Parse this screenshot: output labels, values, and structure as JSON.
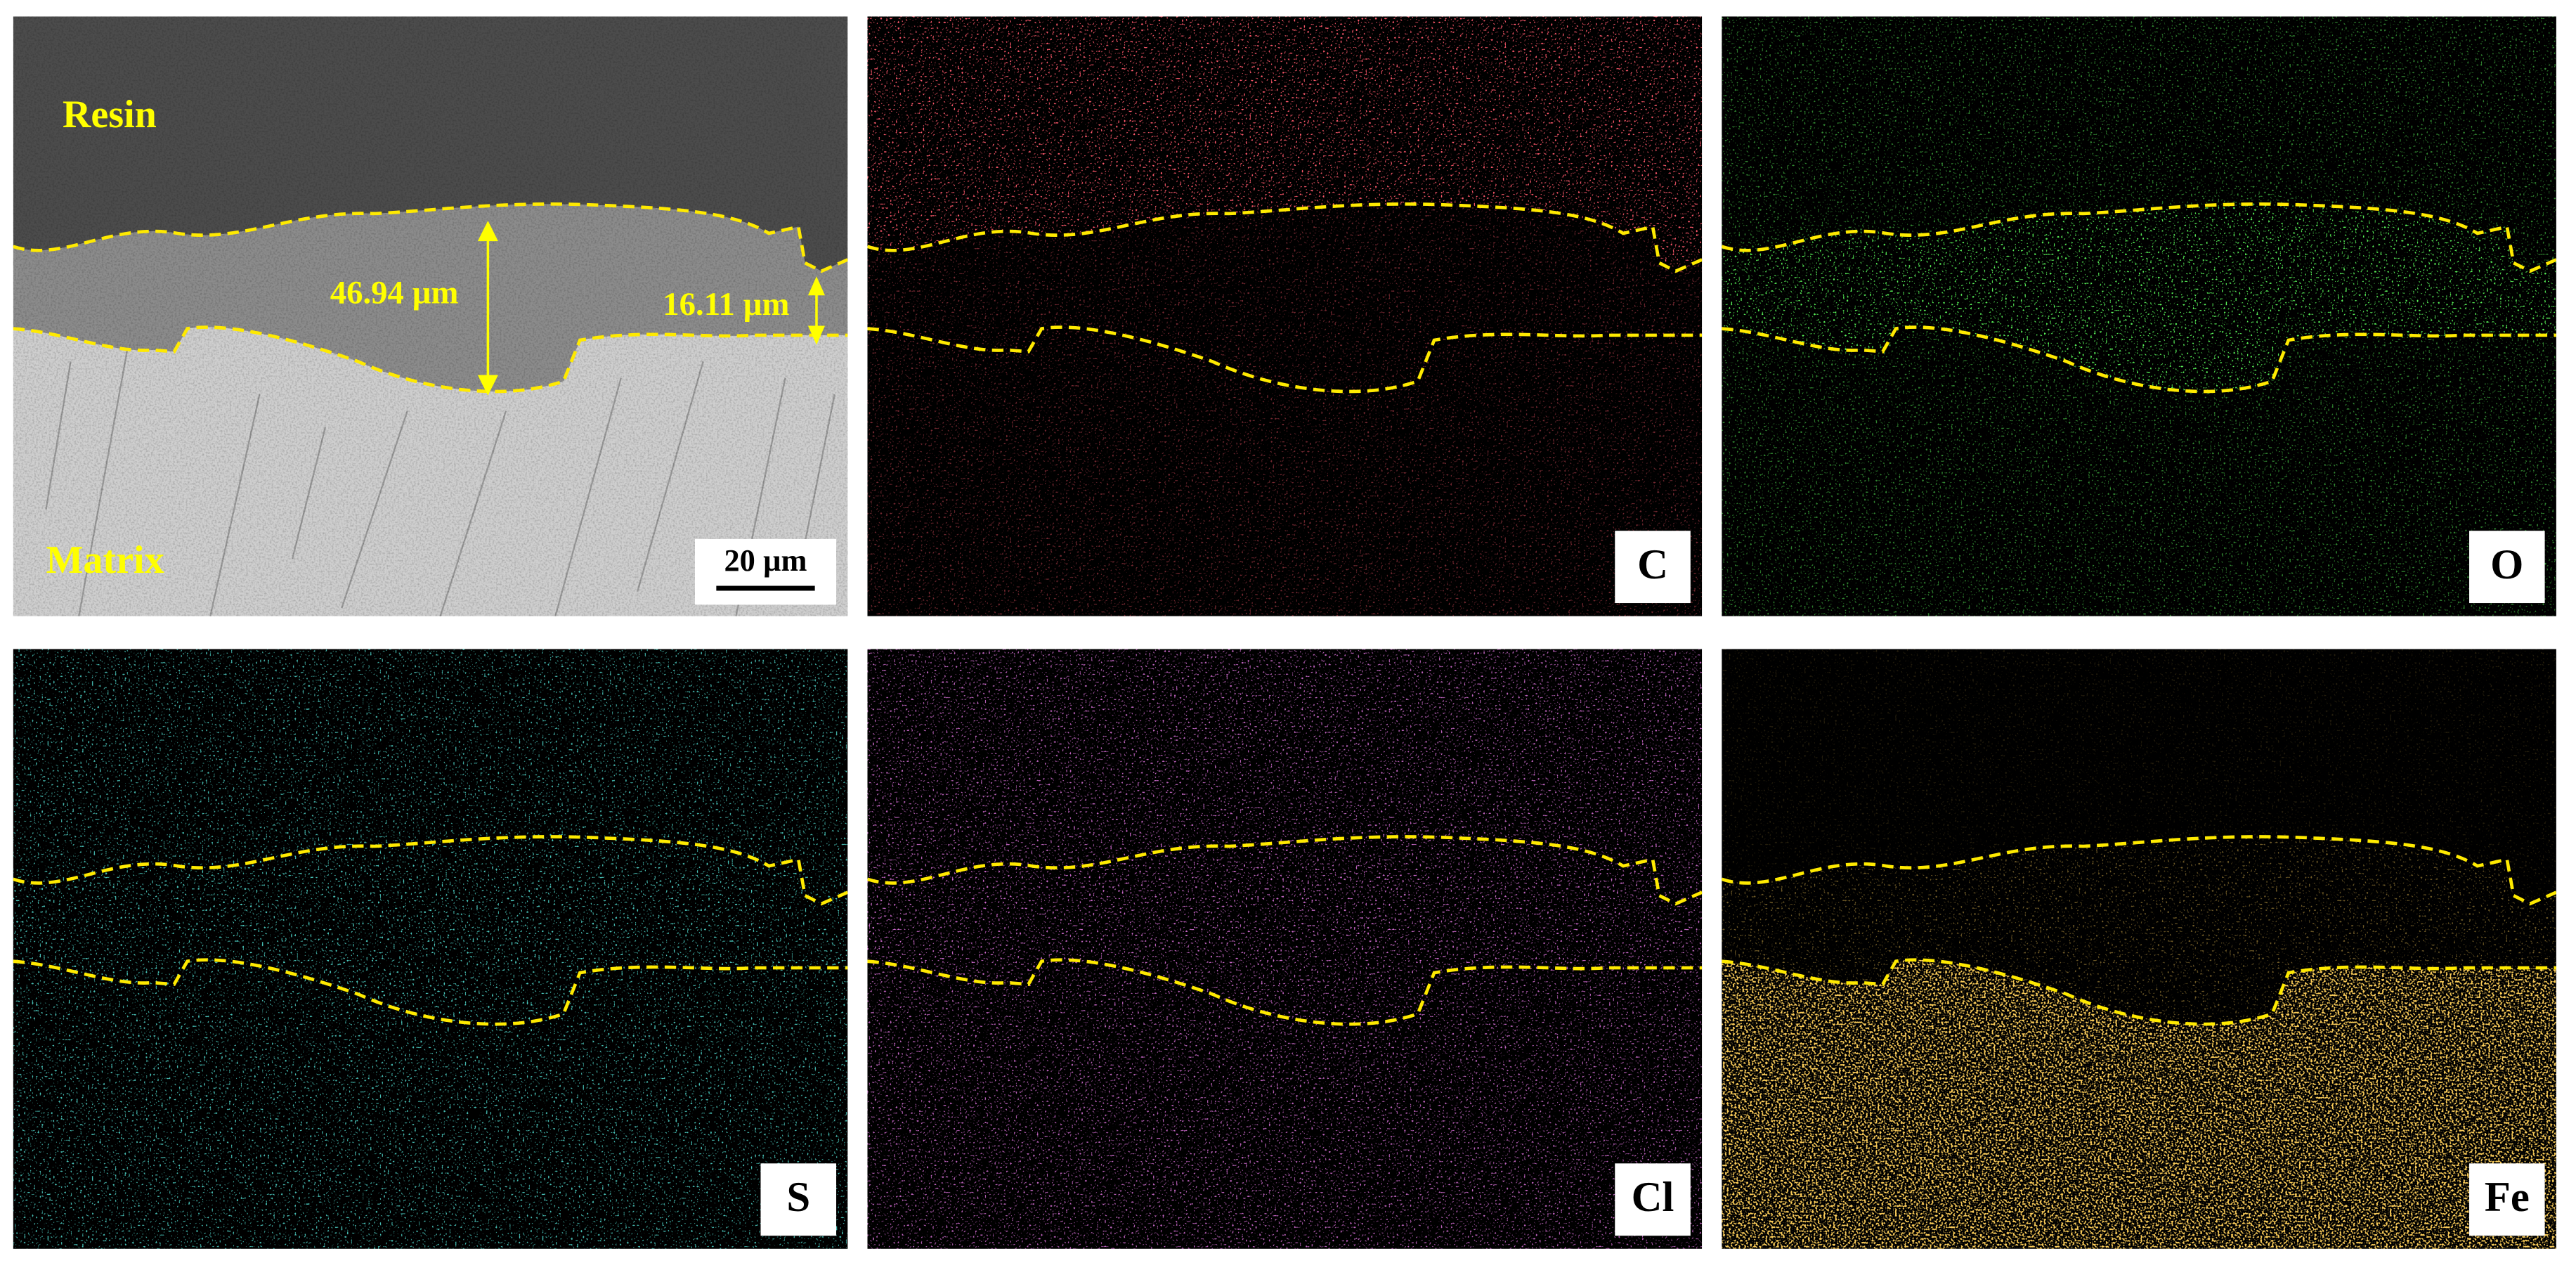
{
  "sem": {
    "region_labels": [
      "Resin",
      "Matrix"
    ],
    "measurements": [
      "46.94 µm",
      "16.11 µm"
    ],
    "scale_bar": "20 µm"
  },
  "maps": [
    {
      "label": "C"
    },
    {
      "label": "O"
    },
    {
      "label": "S"
    },
    {
      "label": "Cl"
    },
    {
      "label": "Fe"
    }
  ]
}
